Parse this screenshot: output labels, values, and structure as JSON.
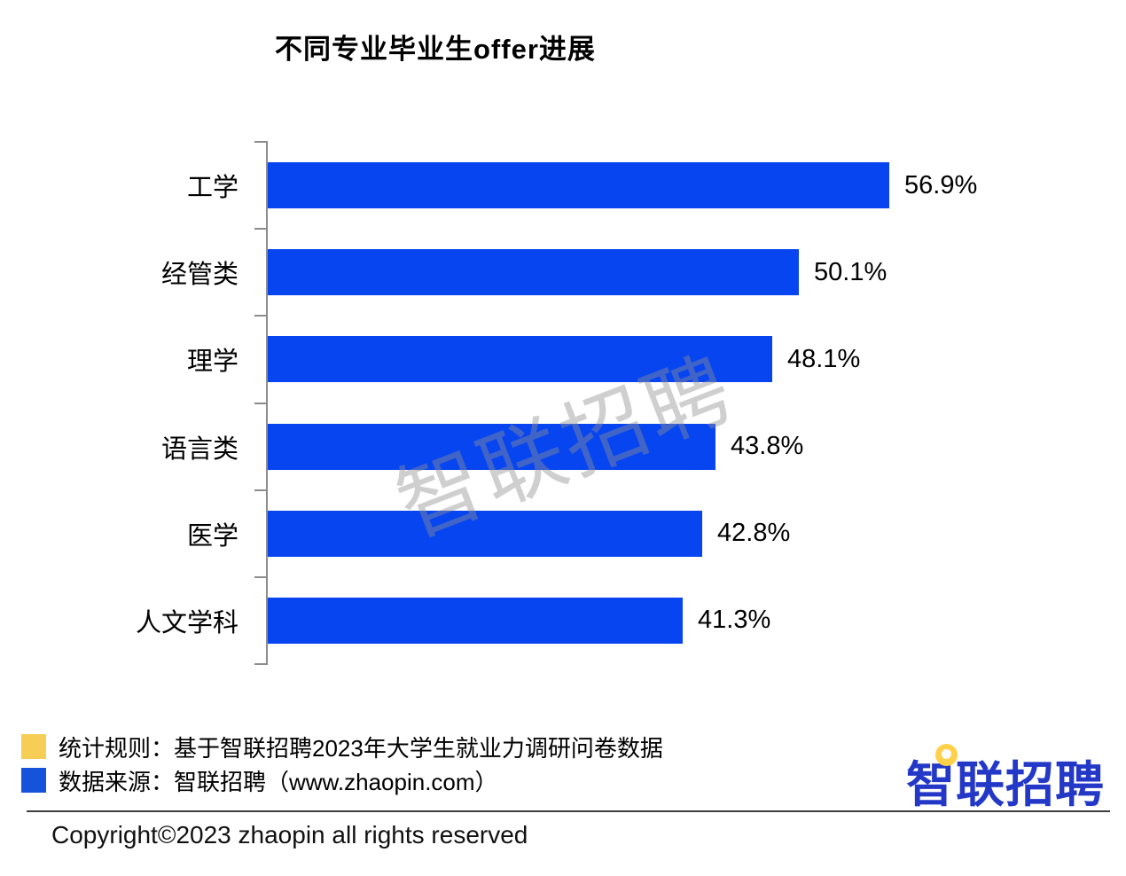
{
  "title": "不同专业毕业生offer进展",
  "chart_data": {
    "type": "bar",
    "orientation": "horizontal",
    "title": "不同专业毕业生offer进展",
    "categories": [
      "工学",
      "经管类",
      "理学",
      "语言类",
      "医学",
      "人文学科"
    ],
    "values": [
      56.9,
      50.1,
      48.1,
      43.8,
      42.8,
      41.3
    ],
    "value_labels": [
      "56.9%",
      "50.1%",
      "48.1%",
      "43.8%",
      "42.8%",
      "41.3%"
    ],
    "xlabel": "",
    "ylabel": "",
    "xlim": [
      10,
      60
    ],
    "grid": false,
    "legend_position": "none",
    "bar_color": "#0745f0",
    "axis_color": "#8c8c8c"
  },
  "watermark": "智联招聘",
  "legend": {
    "items": [
      {
        "swatch_color": "#f6ce56",
        "label": "统计规则：基于智联招聘2023年大学生就业力调研问卷数据"
      },
      {
        "swatch_color": "#1553db",
        "label": "数据来源：智联招聘（www.zhaopin.com）"
      }
    ]
  },
  "logo": {
    "text": "智联招聘",
    "text_color": "#2438c8",
    "pin_color": "#ffd04a"
  },
  "footer": {
    "copyright": "Copyright©2023 zhaopin all rights reserved"
  }
}
